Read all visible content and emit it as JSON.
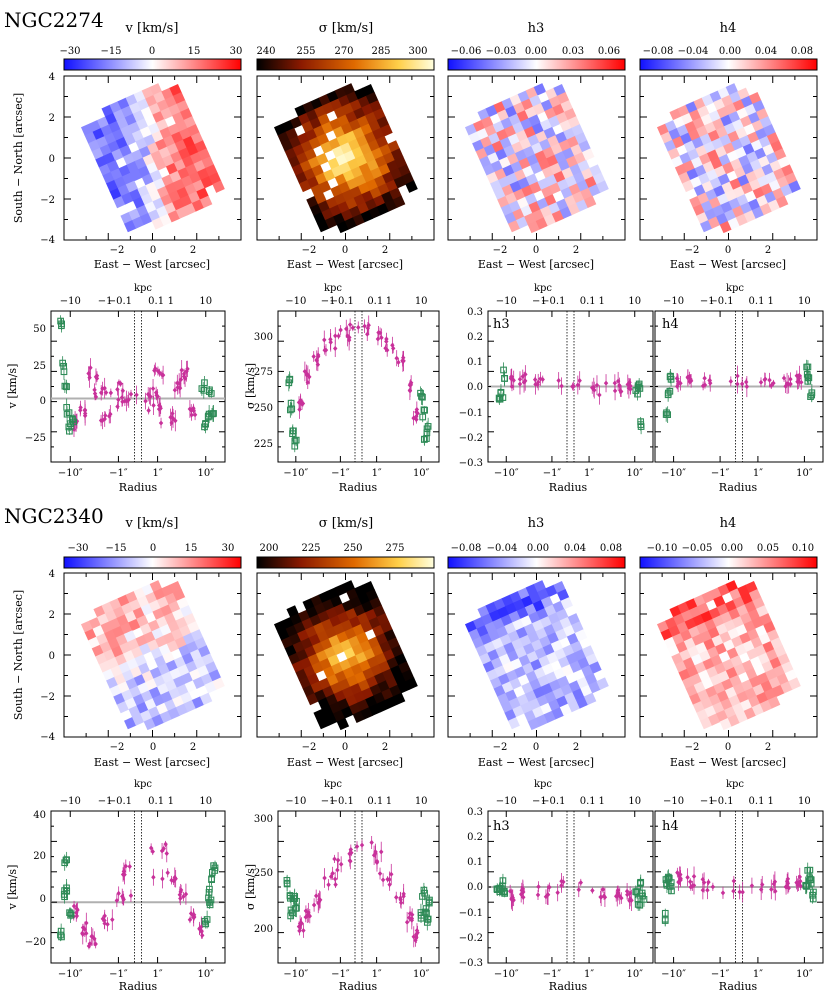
{
  "figure": {
    "map_xlabel": "East − West [arcsec]",
    "map_ylabel": "South − North [arcsec]",
    "radius_label": "Radius",
    "kpc_label": "kpc",
    "map_ticks": [
      "−2",
      "0",
      "2"
    ],
    "map_yticks": [
      "4",
      "2",
      "0",
      "−2",
      "−4"
    ],
    "radius_ticks": [
      "−10″",
      "−1″",
      "1″",
      "10″"
    ],
    "kpc_ticks": [
      "−10",
      "−1",
      "−0.1",
      "0.1",
      "1",
      "10"
    ]
  },
  "colors": {
    "stellar_points": "#c8319a",
    "gas_points": "#2e8b57",
    "zero_line": "#b0b0b0",
    "diverging": [
      "#1010ff",
      "#ffffff",
      "#ff0000"
    ],
    "heat": [
      "#000000",
      "#8b1a00",
      "#e06a00",
      "#ffd04a",
      "#ffffe0"
    ]
  },
  "galaxies": [
    {
      "name": "NGC2274",
      "colorbars": [
        {
          "label": "v [km/s]",
          "ticks": [
            "−30",
            "−15",
            "0",
            "15",
            "30"
          ],
          "cmap": "diverging"
        },
        {
          "label": "σ [km/s]",
          "ticks": [
            "240",
            "255",
            "270",
            "285",
            "300"
          ],
          "cmap": "heat"
        },
        {
          "label": "h3",
          "ticks": [
            "−0.06",
            "−0.03",
            "0.00",
            "0.03",
            "0.06"
          ],
          "cmap": "diverging"
        },
        {
          "label": "h4",
          "ticks": [
            "−0.08",
            "−0.04",
            "0.00",
            "0.04",
            "0.08"
          ],
          "cmap": "diverging"
        }
      ],
      "profiles": [
        {
          "ylabel": "v [km/s]",
          "yticks": [
            "−25",
            "0",
            "25",
            "50"
          ]
        },
        {
          "ylabel": "σ [km/s]",
          "yticks": [
            "225",
            "250",
            "275",
            "300"
          ]
        },
        {
          "panel_label": "h3",
          "yticks": [
            "−0.3",
            "−0.2",
            "−0.1",
            "0.0",
            "0.1",
            "0.2",
            "0.3"
          ]
        },
        {
          "panel_label": "h4"
        }
      ]
    },
    {
      "name": "NGC2340",
      "colorbars": [
        {
          "label": "v [km/s]",
          "ticks": [
            "−30",
            "−15",
            "0",
            "15",
            "30"
          ],
          "cmap": "diverging"
        },
        {
          "label": "σ [km/s]",
          "ticks": [
            "200",
            "225",
            "250",
            "275"
          ],
          "cmap": "heat"
        },
        {
          "label": "h3",
          "ticks": [
            "−0.08",
            "−0.04",
            "0.00",
            "0.04",
            "0.08"
          ],
          "cmap": "diverging"
        },
        {
          "label": "h4",
          "ticks": [
            "−0.10",
            "−0.05",
            "0.00",
            "0.05",
            "0.10"
          ],
          "cmap": "diverging"
        }
      ],
      "profiles": [
        {
          "ylabel": "v [km/s]",
          "yticks": [
            "−20",
            "0",
            "20",
            "40"
          ]
        },
        {
          "ylabel": "σ [km/s]",
          "yticks": [
            "200",
            "250",
            "300"
          ]
        },
        {
          "panel_label": "h3",
          "yticks": [
            "−0.3",
            "−0.2",
            "−0.1",
            "0.0",
            "0.1",
            "0.2",
            "0.3"
          ]
        },
        {
          "panel_label": "h4"
        }
      ]
    }
  ],
  "chart_data": [
    {
      "type": "heatmap",
      "galaxy": "NGC2274",
      "title": "v [km/s]",
      "xlabel": "East − West [arcsec]",
      "ylabel": "South − North [arcsec]",
      "xlim": [
        -4,
        4
      ],
      "ylim": [
        -4,
        4
      ],
      "vmin": -30,
      "vmax": 30,
      "pattern": "rotation",
      "note": "approaching (blue) toward north-west, receding (red) toward south-east"
    },
    {
      "type": "heatmap",
      "galaxy": "NGC2274",
      "title": "σ [km/s]",
      "xlim": [
        -4,
        4
      ],
      "ylim": [
        -4,
        4
      ],
      "vmin": 240,
      "vmax": 300,
      "pattern": "central_peak"
    },
    {
      "type": "heatmap",
      "galaxy": "NGC2274",
      "title": "h3",
      "xlim": [
        -4,
        4
      ],
      "ylim": [
        -4,
        4
      ],
      "vmin": -0.06,
      "vmax": 0.06,
      "pattern": "noise"
    },
    {
      "type": "heatmap",
      "galaxy": "NGC2274",
      "title": "h4",
      "xlim": [
        -4,
        4
      ],
      "ylim": [
        -4,
        4
      ],
      "vmin": -0.08,
      "vmax": 0.08,
      "pattern": "noise"
    },
    {
      "type": "scatter",
      "galaxy": "NGC2274",
      "quantity": "v",
      "xlabel": "Radius",
      "ylabel": "v [km/s]",
      "ylim": [
        -45,
        62
      ],
      "stellar": {
        "x": [
          -8,
          -6,
          -4,
          -3,
          -2,
          -1.5,
          -1,
          0,
          0.5,
          1,
          1.5,
          2,
          3,
          4,
          6
        ],
        "y": [
          -18,
          -10,
          18,
          5,
          -12,
          8,
          -4,
          0,
          4,
          -6,
          20,
          -14,
          10,
          18,
          -8
        ]
      },
      "gas": {
        "x": [
          -14,
          -13,
          -12,
          -11,
          -10,
          -9,
          9,
          10,
          11,
          12,
          13
        ],
        "y": [
          52,
          22,
          10,
          -8,
          -20,
          -16,
          8,
          -18,
          -10,
          4,
          -12
        ]
      }
    },
    {
      "type": "scatter",
      "galaxy": "NGC2274",
      "quantity": "σ",
      "xlabel": "Radius",
      "ylabel": "σ [km/s]",
      "ylim": [
        212,
        315
      ],
      "stellar": {
        "x": [
          -8,
          -6,
          -4,
          -2,
          -1,
          0,
          1,
          2,
          4,
          6,
          8
        ],
        "y": [
          250,
          270,
          282,
          292,
          298,
          305,
          300,
          292,
          280,
          262,
          245
        ]
      },
      "gas": {
        "x": [
          -13,
          -12,
          -11,
          -10,
          10,
          11,
          12,
          13
        ],
        "y": [
          268,
          250,
          232,
          225,
          258,
          245,
          228,
          235
        ]
      }
    },
    {
      "type": "scatter",
      "galaxy": "NGC2274",
      "quantity": "h3",
      "xlabel": "Radius",
      "ylim": [
        -0.3,
        0.3
      ],
      "stellar": {
        "x": [
          -8,
          -5,
          -2,
          0,
          2,
          5,
          8
        ],
        "y": [
          0.02,
          0.03,
          0.01,
          0.0,
          -0.01,
          0.0,
          0.01
        ]
      },
      "gas": {
        "x": [
          -13,
          -12,
          -11,
          11,
          12,
          13
        ],
        "y": [
          -0.06,
          -0.03,
          0.05,
          -0.02,
          0.01,
          -0.15
        ]
      }
    },
    {
      "type": "scatter",
      "galaxy": "NGC2274",
      "quantity": "h4",
      "xlabel": "Radius",
      "ylim": [
        -0.3,
        0.3
      ],
      "stellar": {
        "x": [
          -8,
          -5,
          -2,
          0,
          2,
          5,
          8
        ],
        "y": [
          0.02,
          0.02,
          0.01,
          0.02,
          0.02,
          0.02,
          0.03
        ]
      },
      "gas": {
        "x": [
          -13,
          -12,
          -11,
          11,
          12,
          13
        ],
        "y": [
          -0.1,
          -0.03,
          0.03,
          0.06,
          0.02,
          -0.04
        ]
      }
    },
    {
      "type": "heatmap",
      "galaxy": "NGC2340",
      "title": "v [km/s]",
      "xlim": [
        -4,
        4
      ],
      "ylim": [
        -4,
        4
      ],
      "vmin": -30,
      "vmax": 30,
      "pattern": "weak_rotation"
    },
    {
      "type": "heatmap",
      "galaxy": "NGC2340",
      "title": "σ [km/s]",
      "xlim": [
        -4,
        4
      ],
      "ylim": [
        -4,
        4
      ],
      "vmin": 200,
      "vmax": 290,
      "pattern": "central_peak"
    },
    {
      "type": "heatmap",
      "galaxy": "NGC2340",
      "title": "h3",
      "xlim": [
        -4,
        4
      ],
      "ylim": [
        -4,
        4
      ],
      "vmin": -0.08,
      "vmax": 0.08,
      "pattern": "negative"
    },
    {
      "type": "heatmap",
      "galaxy": "NGC2340",
      "title": "h4",
      "xlim": [
        -4,
        4
      ],
      "ylim": [
        -4,
        4
      ],
      "vmin": -0.1,
      "vmax": 0.1,
      "pattern": "positive"
    },
    {
      "type": "scatter",
      "galaxy": "NGC2340",
      "quantity": "v",
      "xlabel": "Radius",
      "ylabel": "v [km/s]",
      "ylim": [
        -28,
        42
      ],
      "stellar": {
        "x": [
          -8,
          -6,
          -4,
          -2,
          -1,
          0,
          1,
          2,
          4,
          6,
          8
        ],
        "y": [
          -4,
          -12,
          -18,
          -8,
          2,
          14,
          24,
          12,
          4,
          -6,
          -14
        ]
      },
      "gas": {
        "x": [
          -14,
          -13,
          -12,
          -11,
          -10,
          10,
          11,
          12,
          13,
          14
        ],
        "y": [
          -14,
          4,
          18,
          6,
          -4,
          -8,
          4,
          0,
          12,
          16
        ]
      }
    },
    {
      "type": "scatter",
      "galaxy": "NGC2340",
      "quantity": "σ",
      "xlabel": "Radius",
      "ylabel": "σ [km/s]",
      "ylim": [
        178,
        308
      ],
      "stellar": {
        "x": [
          -8,
          -6,
          -4,
          -2,
          -1,
          0,
          1,
          2,
          4,
          6,
          8
        ],
        "y": [
          210,
          218,
          232,
          250,
          262,
          276,
          268,
          250,
          232,
          218,
          202
        ]
      },
      "gas": {
        "x": [
          -14,
          -13,
          -12,
          -11,
          -10,
          10,
          11,
          12,
          13,
          14
        ],
        "y": [
          248,
          232,
          222,
          236,
          228,
          220,
          238,
          224,
          212,
          230
        ]
      }
    },
    {
      "type": "scatter",
      "galaxy": "NGC2340",
      "quantity": "h3",
      "xlabel": "Radius",
      "ylim": [
        -0.3,
        0.3
      ],
      "stellar": {
        "x": [
          -8,
          -5,
          -2,
          0,
          2,
          5,
          8
        ],
        "y": [
          -0.04,
          -0.03,
          -0.02,
          0.0,
          -0.02,
          -0.03,
          -0.03
        ]
      },
      "gas": {
        "x": [
          -14,
          -13,
          -12,
          -11,
          11,
          12,
          13,
          14
        ],
        "y": [
          0.0,
          -0.02,
          0.01,
          -0.01,
          -0.02,
          -0.06,
          0.02,
          -0.04
        ]
      }
    },
    {
      "type": "scatter",
      "galaxy": "NGC2340",
      "quantity": "h4",
      "xlabel": "Radius",
      "ylim": [
        -0.3,
        0.3
      ],
      "stellar": {
        "x": [
          -8,
          -5,
          -2,
          0,
          2,
          5,
          8
        ],
        "y": [
          0.04,
          0.02,
          0.01,
          0.0,
          0.0,
          0.01,
          0.02
        ]
      },
      "gas": {
        "x": [
          -14,
          -13,
          -12,
          -11,
          11,
          12,
          13,
          14
        ],
        "y": [
          -0.12,
          0.02,
          0.04,
          0.0,
          0.02,
          0.05,
          0.03,
          -0.03
        ]
      }
    }
  ]
}
